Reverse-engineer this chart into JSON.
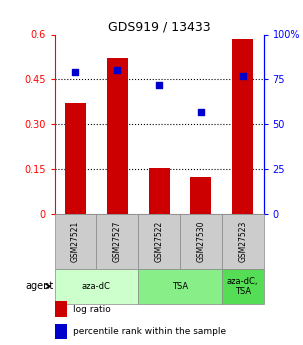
{
  "title": "GDS919 / 13433",
  "samples": [
    "GSM27521",
    "GSM27527",
    "GSM27522",
    "GSM27530",
    "GSM27523"
  ],
  "log_ratio": [
    0.37,
    0.52,
    0.155,
    0.125,
    0.585
  ],
  "percentile_rank": [
    79,
    80,
    72,
    57,
    77
  ],
  "ylim_left": [
    0,
    0.6
  ],
  "ylim_right": [
    0,
    100
  ],
  "yticks_left": [
    0,
    0.15,
    0.3,
    0.45,
    0.6
  ],
  "yticks_right": [
    0,
    25,
    50,
    75,
    100
  ],
  "ytick_labels_left": [
    "0",
    "0.15",
    "0.30",
    "0.45",
    "0.6"
  ],
  "ytick_labels_right": [
    "0",
    "25",
    "50",
    "75",
    "100%"
  ],
  "hlines": [
    0.15,
    0.3,
    0.45
  ],
  "bar_color": "#cc0000",
  "dot_color": "#0000cc",
  "agent_groups": [
    {
      "label": "aza-dC",
      "span": [
        0,
        2
      ],
      "color": "#ccffcc"
    },
    {
      "label": "TSA",
      "span": [
        2,
        4
      ],
      "color": "#88ee88"
    },
    {
      "label": "aza-dC,\nTSA",
      "span": [
        4,
        5
      ],
      "color": "#55dd55"
    }
  ],
  "agent_label": "agent",
  "legend_bar_label": "log ratio",
  "legend_dot_label": "percentile rank within the sample",
  "bar_width": 0.5,
  "sample_bg_color": "#cccccc",
  "figsize": [
    3.03,
    3.45
  ],
  "dpi": 100
}
